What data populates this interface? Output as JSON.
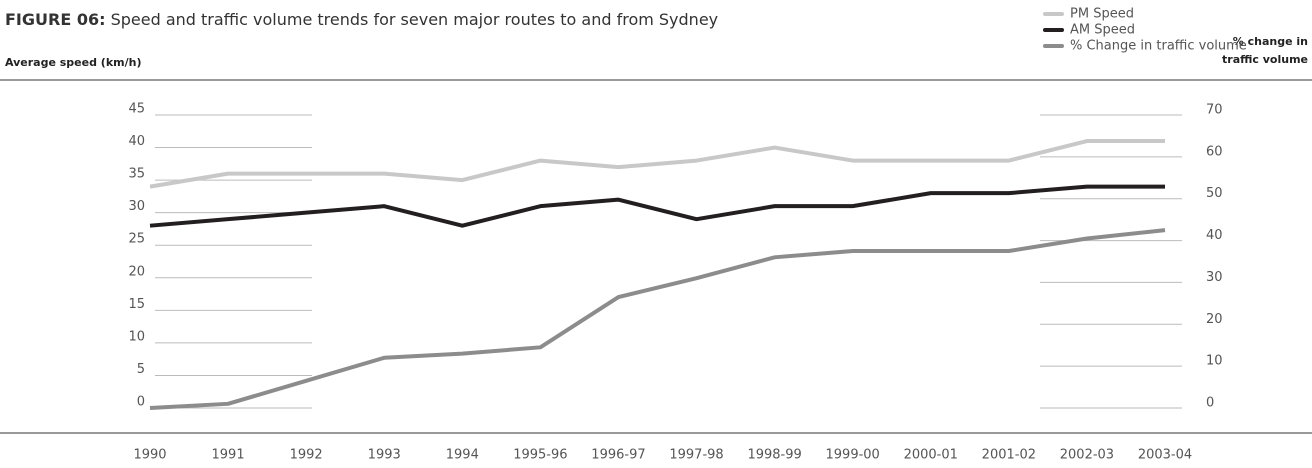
{
  "chart_data": {
    "type": "line",
    "title_prefix": "FIGURE 06:",
    "title": "Speed and traffic volume trends for seven major routes to and from Sydney",
    "ylabel": "Average speed (km/h)",
    "y2label": [
      "% change in",
      "traffic volume"
    ],
    "categories": [
      "1990",
      "1991",
      "1992",
      "1993",
      "1994",
      "1995-96",
      "1996-97",
      "1997-98",
      "1998-99",
      "1999-00",
      "2000-01",
      "2001-02",
      "2002-03",
      "2003-04"
    ],
    "series": [
      {
        "name": "PM Speed",
        "color": "#c8c8c8",
        "values": [
          34,
          36,
          36,
          36,
          35,
          38,
          37,
          38,
          40,
          38,
          38,
          38,
          41,
          41
        ]
      },
      {
        "name": "AM Speed",
        "color": "#231f20",
        "values": [
          28,
          29,
          30,
          31,
          28,
          31,
          32,
          29,
          31,
          31,
          33,
          33,
          34,
          34
        ]
      },
      {
        "name": "% Change in traffic volume",
        "color": "#8c8c8c",
        "axis": "y2",
        "values": [
          0,
          1,
          6.5,
          12,
          13,
          14.5,
          26.5,
          31,
          36,
          37.5,
          37.5,
          37.5,
          40.5,
          42.5
        ]
      }
    ],
    "ylim": [
      0,
      45
    ],
    "yticks": [
      0,
      5,
      10,
      15,
      20,
      25,
      30,
      35,
      40,
      45
    ],
    "y2lim": [
      0,
      70
    ],
    "y2ticks": [
      0,
      10,
      20,
      30,
      40,
      50,
      60,
      70
    ],
    "grid": true,
    "legend": "upper right"
  }
}
